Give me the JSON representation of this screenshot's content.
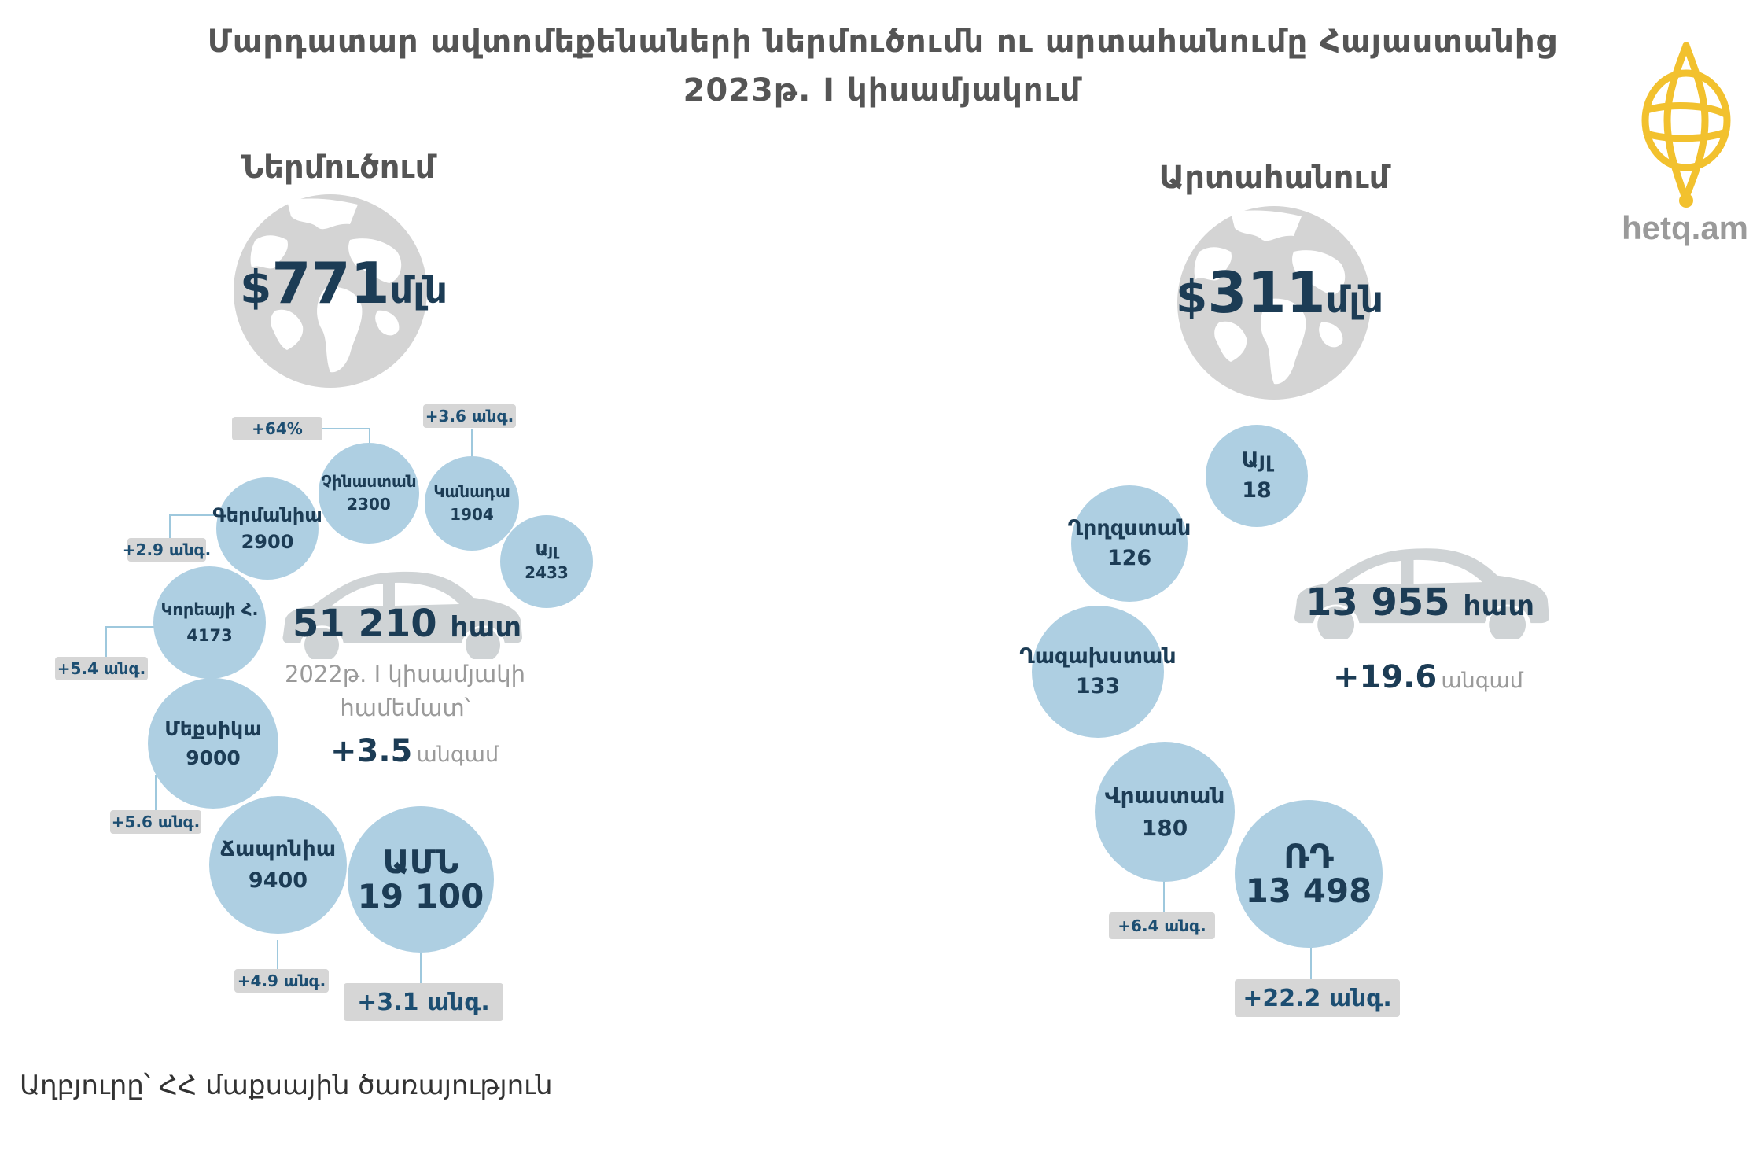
{
  "title_line1": "Մարդատար ավտոմեքենաների ներմուծումն ու արտահանումը Հայաստանից",
  "title_line2": "2023թ. I  կիսամյակում",
  "logo_text": "hetq.am",
  "source": "Աղբյուրը՝ ՀՀ մաքսային ծառայություն",
  "colors": {
    "bubble": "#aecfe2",
    "dark_text": "#1c3c55",
    "badge_bg": "#d6d6d6",
    "globe": "#d4d4d4",
    "car": "#cfd3d5",
    "logo": "#f2c12e"
  },
  "import": {
    "label": "Ներմուծում",
    "value_symbol": "$",
    "value_number": "771",
    "value_unit": "մլն",
    "units_total": "51 210",
    "units_word": "հատ",
    "compare_line1": "2022թ. I կիսամյակի",
    "compare_line2": "համեմատ՝",
    "growth_value": "+3.5",
    "growth_word": "անգամ",
    "countries": [
      {
        "name": "Չինաստան",
        "units": "2300",
        "change": "+64%"
      },
      {
        "name": "Կանադա",
        "units": "1904",
        "change": "+3.6 անգ."
      },
      {
        "name": "Այլ",
        "units": "2433",
        "change": ""
      },
      {
        "name": "Գերմանիա",
        "units": "2900",
        "change": "+2.9 անգ."
      },
      {
        "name": "Կորեայի Հ.",
        "units": "4173",
        "change": "+5.4 անգ."
      },
      {
        "name": "Մեքսիկա",
        "units": "9000",
        "change": "+5.6 անգ."
      },
      {
        "name": "Ճապոնիա",
        "units": "9400",
        "change": "+4.9 անգ."
      },
      {
        "name": "ԱՄՆ",
        "units": "19 100",
        "change": "+3.1 անգ."
      }
    ]
  },
  "export": {
    "label": "Արտահանում",
    "value_symbol": "$",
    "value_number": "311",
    "value_unit": "մլն",
    "units_total": "13 955",
    "units_word": "հատ",
    "growth_value": "+19.6",
    "growth_word": "անգամ",
    "countries": [
      {
        "name": "Այլ",
        "units": "18",
        "change": ""
      },
      {
        "name": "Ղրղզստան",
        "units": "126",
        "change": ""
      },
      {
        "name": "Ղազախստան",
        "units": "133",
        "change": ""
      },
      {
        "name": "Վրաստան",
        "units": "180",
        "change": "+6.4 անգ."
      },
      {
        "name": "ՌԴ",
        "units": "13 498",
        "change": "+22.2  անգ."
      }
    ]
  },
  "chart_data": {
    "type": "bubble",
    "title": "Մարդատար ավտոմեքենաների ներմուծումն ու արտահանումը Հայաստանից 2023թ. I  կիսամյակում",
    "series": [
      {
        "name": "Ներմուծում",
        "total_value_musd": 771,
        "total_units": 51210,
        "growth_vs_2022_h1_times": 3.5,
        "categories": [
          "Չինաստան",
          "Կանադա",
          "Այլ",
          "Գերմանիա",
          "Կորեայի Հ.",
          "Մեքսիկա",
          "Ճապոնիա",
          "ԱՄՆ"
        ],
        "values": [
          2300,
          1904,
          2433,
          2900,
          4173,
          9000,
          9400,
          19100
        ]
      },
      {
        "name": "Արտահանում",
        "total_value_musd": 311,
        "total_units": 13955,
        "growth_vs_2022_h1_times": 19.6,
        "categories": [
          "Այլ",
          "Ղրղզստան",
          "Ղազախստան",
          "Վրաստան",
          "ՌԴ"
        ],
        "values": [
          18,
          126,
          133,
          180,
          13498
        ]
      }
    ]
  }
}
